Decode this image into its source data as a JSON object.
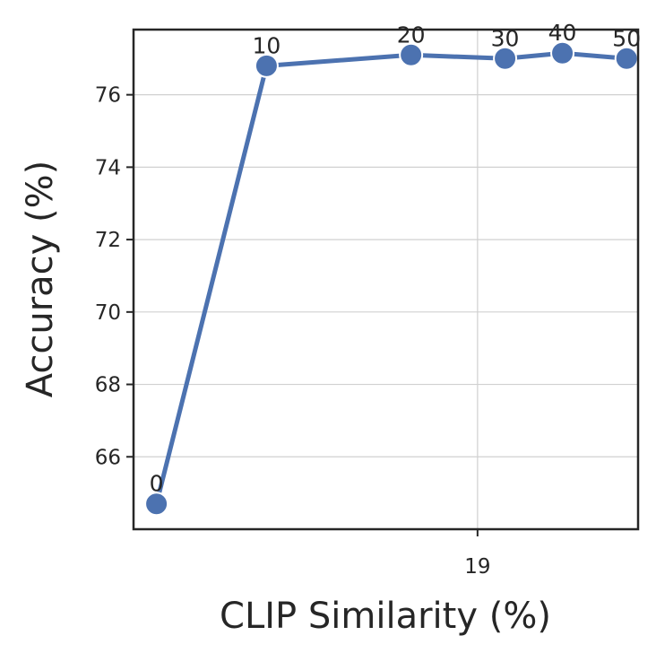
{
  "chart_data": {
    "type": "line",
    "title": "",
    "xlabel": "CLIP Similarity (%)",
    "ylabel": "Accuracy (%)",
    "x_ticks": [
      19
    ],
    "y_ticks": [
      66,
      68,
      70,
      72,
      74,
      76
    ],
    "xlim": [
      18.85,
      19.07
    ],
    "ylim": [
      64.0,
      77.8
    ],
    "grid": true,
    "color": "#4c72b0",
    "series": [
      {
        "x": [
          18.86,
          18.908,
          18.971,
          19.012,
          19.037,
          19.065
        ],
        "y": [
          64.7,
          76.8,
          77.1,
          77.0,
          77.15,
          77.0
        ],
        "labels": [
          "0",
          "10",
          "20",
          "30",
          "40",
          "50"
        ]
      }
    ]
  }
}
